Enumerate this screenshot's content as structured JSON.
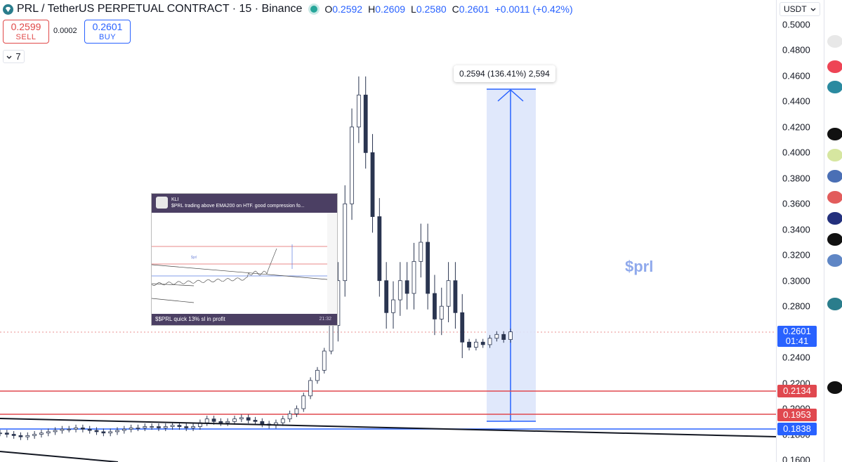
{
  "symbol": {
    "title": "PRL / TetherUS PERPETUAL CONTRACT · 15 · Binance",
    "ohlc": {
      "o_label": "O",
      "o": "0.2592",
      "h_label": "H",
      "h": "0.2609",
      "l_label": "L",
      "l": "0.2580",
      "c_label": "C",
      "c": "0.2601",
      "change": "+0.0011 (+0.42%)"
    }
  },
  "trade": {
    "sell_price": "0.2599",
    "sell_label": "SELL",
    "spread": "0.0002",
    "buy_price": "0.2601",
    "buy_label": "BUY"
  },
  "indicators": {
    "count": "7"
  },
  "measure": {
    "label": "0.2594 (136.41%) 2,594"
  },
  "annotation": {
    "text": "$prl"
  },
  "currency": {
    "selected": "USDT"
  },
  "price_axis": {
    "ticks": [
      "0.5000",
      "0.4800",
      "0.4600",
      "0.4400",
      "0.4200",
      "0.4000",
      "0.3800",
      "0.3600",
      "0.3400",
      "0.3200",
      "0.3000",
      "0.2800",
      "0.2400",
      "0.2200",
      "0.2000",
      "0.1800",
      "0.1600"
    ],
    "current_price": "0.2601",
    "countdown": "01:41",
    "level_1": "0.2134",
    "level_2": "0.1953",
    "level_3": "0.1838"
  },
  "colors": {
    "accent": "#2962ff",
    "level_red": "#e0484f",
    "up": "#26a69a",
    "measure_fill": "#dde5fb",
    "thumb_bar": "#4b3f63"
  },
  "embedded_post": {
    "author": "KLI",
    "text": "$PRL trading above EMA200 on HTF. good compression fo...",
    "chart_label": "$prl",
    "footer": "$$PRL quick 13% sl in profit",
    "time": "21:32"
  },
  "chart_data": {
    "type": "candlestick",
    "symbol": "PRL / TetherUS PERPETUAL CONTRACT",
    "interval": "15",
    "exchange": "Binance",
    "ylim": [
      0.16,
      0.5
    ],
    "price_lines": [
      {
        "value": 0.2134,
        "color": "#e0484f"
      },
      {
        "value": 0.1953,
        "color": "#e0484f"
      },
      {
        "value": 0.1838,
        "color": "#2962ff"
      }
    ],
    "close_price_points": [
      0.181,
      0.18,
      0.179,
      0.178,
      0.179,
      0.18,
      0.181,
      0.182,
      0.183,
      0.184,
      0.184,
      0.185,
      0.184,
      0.183,
      0.182,
      0.181,
      0.182,
      0.183,
      0.184,
      0.185,
      0.185,
      0.186,
      0.186,
      0.185,
      0.186,
      0.187,
      0.186,
      0.185,
      0.186,
      0.189,
      0.192,
      0.19,
      0.189,
      0.19,
      0.192,
      0.193,
      0.191,
      0.19,
      0.188,
      0.187,
      0.189,
      0.192,
      0.196,
      0.2,
      0.21,
      0.222,
      0.23,
      0.245,
      0.265,
      0.3,
      0.36,
      0.42,
      0.445,
      0.4,
      0.35,
      0.3,
      0.275,
      0.285,
      0.3,
      0.29,
      0.315,
      0.33,
      0.29,
      0.27,
      0.28,
      0.3,
      0.275,
      0.252,
      0.248,
      0.252,
      0.25,
      0.255,
      0.258,
      0.254,
      0.26
    ],
    "measure_range": {
      "from": 0.19,
      "to": 0.4494,
      "change": 0.2594,
      "change_pct": 136.41,
      "ticks": 2594
    }
  }
}
